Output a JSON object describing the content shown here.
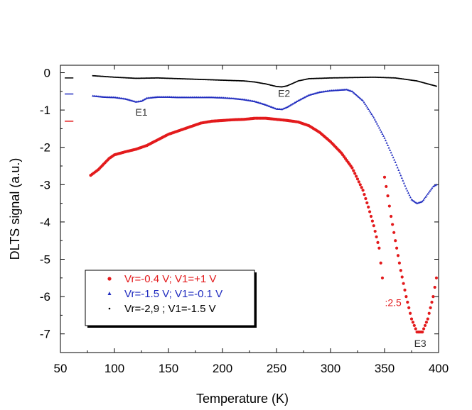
{
  "chart_data": {
    "type": "scatter",
    "title": "",
    "xlabel": "Temperature (K)",
    "ylabel": "DLTS signal (a.u.)",
    "xlim": [
      50,
      400
    ],
    "ylim": [
      -7.5,
      0.2
    ],
    "xticks": [
      50,
      100,
      150,
      200,
      250,
      300,
      350,
      400
    ],
    "yticks": [
      0,
      -1,
      -2,
      -3,
      -4,
      -5,
      -6,
      -7
    ],
    "xtick_labels": [
      "50",
      "100",
      "150",
      "200",
      "250",
      "300",
      "350",
      "400"
    ],
    "ytick_labels": [
      "0",
      "-1",
      "-2",
      "-3",
      "-4",
      "-5",
      "-6",
      "-7"
    ],
    "grid": false,
    "legend_position": "bottom-left",
    "series": [
      {
        "name": "Vr=-0.4 V; V1=+1 V",
        "color": "#e31a1c",
        "marker": "circle",
        "segments": [
          [
            [
              78,
              -2.75
            ],
            [
              85,
              -2.6
            ],
            [
              90,
              -2.45
            ],
            [
              95,
              -2.3
            ],
            [
              100,
              -2.2
            ],
            [
              110,
              -2.12
            ],
            [
              120,
              -2.05
            ],
            [
              130,
              -1.95
            ],
            [
              140,
              -1.8
            ],
            [
              150,
              -1.65
            ],
            [
              160,
              -1.55
            ],
            [
              170,
              -1.45
            ],
            [
              180,
              -1.35
            ],
            [
              190,
              -1.3
            ],
            [
              200,
              -1.28
            ],
            [
              210,
              -1.26
            ],
            [
              220,
              -1.25
            ],
            [
              230,
              -1.22
            ],
            [
              240,
              -1.22
            ],
            [
              250,
              -1.25
            ],
            [
              260,
              -1.28
            ],
            [
              270,
              -1.32
            ],
            [
              280,
              -1.42
            ],
            [
              290,
              -1.6
            ],
            [
              300,
              -1.85
            ],
            [
              310,
              -2.15
            ],
            [
              320,
              -2.55
            ],
            [
              330,
              -3.15
            ],
            [
              335,
              -3.6
            ],
            [
              340,
              -4.1
            ],
            [
              345,
              -4.7
            ],
            [
              348,
              -5.5
            ]
          ],
          [
            [
              350,
              -2.8
            ],
            [
              353,
              -3.3
            ],
            [
              356,
              -3.85
            ],
            [
              360,
              -4.5
            ],
            [
              365,
              -5.3
            ],
            [
              370,
              -6.0
            ],
            [
              375,
              -6.6
            ],
            [
              380,
              -6.95
            ],
            [
              385,
              -6.95
            ],
            [
              390,
              -6.6
            ],
            [
              395,
              -6.0
            ],
            [
              398,
              -5.5
            ]
          ]
        ]
      },
      {
        "name": "Vr=-1.5 V; V1=-0.1 V",
        "color": "#1f2bbf",
        "marker": "triangle",
        "segments": [
          [
            [
              80,
              -0.62
            ],
            [
              90,
              -0.65
            ],
            [
              100,
              -0.66
            ],
            [
              110,
              -0.7
            ],
            [
              120,
              -0.78
            ],
            [
              125,
              -0.76
            ],
            [
              130,
              -0.68
            ],
            [
              140,
              -0.65
            ],
            [
              150,
              -0.65
            ],
            [
              160,
              -0.66
            ],
            [
              170,
              -0.66
            ],
            [
              180,
              -0.66
            ],
            [
              190,
              -0.66
            ],
            [
              200,
              -0.67
            ],
            [
              210,
              -0.69
            ],
            [
              220,
              -0.72
            ],
            [
              230,
              -0.77
            ],
            [
              240,
              -0.86
            ],
            [
              250,
              -0.97
            ],
            [
              255,
              -0.98
            ],
            [
              260,
              -0.92
            ],
            [
              270,
              -0.75
            ],
            [
              280,
              -0.6
            ],
            [
              290,
              -0.52
            ],
            [
              300,
              -0.48
            ],
            [
              310,
              -0.46
            ],
            [
              315,
              -0.45
            ],
            [
              320,
              -0.5
            ],
            [
              330,
              -0.75
            ],
            [
              340,
              -1.2
            ],
            [
              350,
              -1.75
            ],
            [
              360,
              -2.4
            ],
            [
              370,
              -3.1
            ],
            [
              375,
              -3.4
            ],
            [
              380,
              -3.5
            ],
            [
              385,
              -3.45
            ],
            [
              390,
              -3.25
            ],
            [
              395,
              -3.05
            ],
            [
              398,
              -3.0
            ]
          ]
        ]
      },
      {
        "name": "Vr=-2,9 ; V1=-1.5 V",
        "color": "#000000",
        "marker": "dot",
        "segments": [
          [
            [
              80,
              -0.08
            ],
            [
              100,
              -0.12
            ],
            [
              120,
              -0.15
            ],
            [
              140,
              -0.14
            ],
            [
              160,
              -0.16
            ],
            [
              180,
              -0.18
            ],
            [
              200,
              -0.2
            ],
            [
              220,
              -0.22
            ],
            [
              230,
              -0.25
            ],
            [
              240,
              -0.3
            ],
            [
              250,
              -0.37
            ],
            [
              255,
              -0.38
            ],
            [
              260,
              -0.35
            ],
            [
              270,
              -0.22
            ],
            [
              280,
              -0.16
            ],
            [
              300,
              -0.14
            ],
            [
              320,
              -0.13
            ],
            [
              340,
              -0.12
            ],
            [
              360,
              -0.14
            ],
            [
              380,
              -0.22
            ],
            [
              390,
              -0.3
            ],
            [
              398,
              -0.36
            ]
          ]
        ]
      }
    ],
    "annotations": [
      {
        "text": "E1",
        "x": 125,
        "y": -1.15,
        "color": "#333333"
      },
      {
        "text": "E2",
        "x": 257,
        "y": -0.65,
        "color": "#333333"
      },
      {
        "text": "E3",
        "x": 383,
        "y": -7.35,
        "color": "#333333"
      },
      {
        "text": ":2.5",
        "x": 358,
        "y": -6.25,
        "color": "#e31a1c"
      }
    ],
    "legend": [
      {
        "label": "Vr=-0.4 V; V1=+1 V",
        "color": "#e31a1c",
        "marker": "circle"
      },
      {
        "label": "Vr=-1.5 V; V1=-0.1 V",
        "color": "#1f2bbf",
        "marker": "triangle"
      },
      {
        "label": "Vr=-2,9 ; V1=-1.5 V",
        "color": "#000000",
        "marker": "dot"
      }
    ],
    "short_line_marks": [
      {
        "color": "#000000",
        "y": -0.14
      },
      {
        "color": "#1f2bbf",
        "y": -0.57
      },
      {
        "color": "#e31a1c",
        "y": -1.3
      }
    ]
  }
}
